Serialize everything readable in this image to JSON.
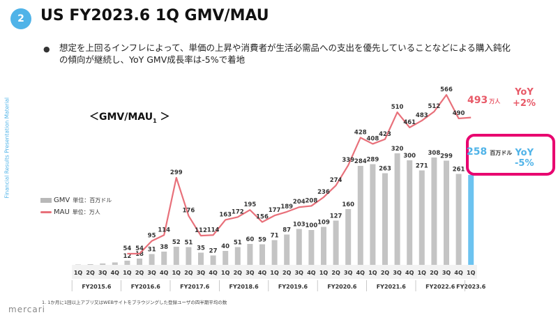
{
  "header": {
    "badge": "2",
    "title": "US FY2023.6 1Q GMV/MAU"
  },
  "bullet": {
    "dot": "●",
    "text": "想定を上回るインフレによって、単価の上昇や消費者が生活必需品への支出を優先していることなどによる購入鈍化の傾向が継続し、YoY GMV成長率は-5%で着地"
  },
  "side_label": "Financial Results Presentation Material",
  "chart_label": {
    "main": "＜GMV/MAU",
    "sub": "1",
    "end": " ＞"
  },
  "legend": {
    "gmv_key": "GMV",
    "gmv_unit": "単位：百万ドル",
    "mau_key": "MAU",
    "mau_unit": "単位：万人"
  },
  "highlights": {
    "gmv_value": "258",
    "gmv_unit": "百万ドル",
    "gmv_yoy_label": "YoY",
    "gmv_yoy_value": "-5%",
    "mau_value": "493",
    "mau_unit": "万人",
    "mau_yoy_label": "YoY",
    "mau_yoy_value": "+2%"
  },
  "footnote": "1. 1か月に1回以上アプリ又はWEBサイトをブラウジングした登録ユーザの四半期平均の数",
  "logo": "mercari",
  "colors": {
    "bar": "#c4c4c4",
    "bar_latest": "#6cc3f0",
    "line": "#e8707a",
    "accent_blue": "#4fb3e8",
    "highlight_border": "#e8006f"
  },
  "chart_data": {
    "type": "bar",
    "quarters": [
      "1Q",
      "2Q",
      "3Q",
      "4Q",
      "1Q",
      "2Q",
      "3Q",
      "4Q",
      "1Q",
      "2Q",
      "3Q",
      "4Q",
      "1Q",
      "2Q",
      "3Q",
      "4Q",
      "1Q",
      "2Q",
      "3Q",
      "4Q",
      "1Q",
      "2Q",
      "3Q",
      "4Q",
      "1Q",
      "2Q",
      "3Q",
      "4Q",
      "1Q",
      "2Q",
      "3Q",
      "4Q",
      "1Q"
    ],
    "fiscal_years": [
      {
        "label": "FY2015.6",
        "start": 0,
        "count": 4
      },
      {
        "label": "FY2016.6",
        "start": 4,
        "count": 4
      },
      {
        "label": "FY2017.6",
        "start": 8,
        "count": 4
      },
      {
        "label": "FY2018.6",
        "start": 12,
        "count": 4
      },
      {
        "label": "FY2019.6",
        "start": 16,
        "count": 4
      },
      {
        "label": "FY2020.6",
        "start": 20,
        "count": 4
      },
      {
        "label": "FY2021.6",
        "start": 24,
        "count": 4
      },
      {
        "label": "FY2022.6",
        "start": 28,
        "count": 4
      },
      {
        "label": "FY2023.6",
        "start": 32,
        "count": 1
      }
    ],
    "series": [
      {
        "name": "GMV",
        "kind": "bar",
        "values": [
          1,
          2,
          4,
          7,
          12,
          18,
          31,
          38,
          52,
          51,
          35,
          27,
          40,
          51,
          60,
          59,
          71,
          87,
          103,
          100,
          109,
          127,
          160,
          284,
          289,
          263,
          320,
          300,
          271,
          308,
          299,
          261,
          258
        ],
        "labels": [
          "",
          "",
          "",
          "",
          "12",
          "18",
          "31",
          "38",
          "52",
          "51",
          "35",
          "27",
          "40",
          "51",
          "60",
          "59",
          "71",
          "87",
          "103",
          "100",
          "109",
          "127",
          "160",
          "284",
          "289",
          "263",
          "320",
          "300",
          "271",
          "308",
          "299",
          "261",
          ""
        ]
      },
      {
        "name": "MAU",
        "kind": "line",
        "values": [
          null,
          null,
          null,
          null,
          54,
          54,
          95,
          114,
          299,
          176,
          112,
          114,
          163,
          172,
          195,
          156,
          177,
          189,
          204,
          208,
          236,
          274,
          339,
          428,
          408,
          423,
          510,
          461,
          483,
          512,
          566,
          490,
          493
        ],
        "labels": [
          "",
          "",
          "",
          "",
          "54",
          "54",
          "95",
          "114",
          "299",
          "176",
          "112",
          "114",
          "163",
          "172",
          "195",
          "156",
          "177",
          "189",
          "204",
          "208",
          "236",
          "274",
          "339",
          "428",
          "408",
          "423",
          "510",
          "461",
          "483",
          "512",
          "566",
          "490",
          ""
        ]
      }
    ]
  }
}
